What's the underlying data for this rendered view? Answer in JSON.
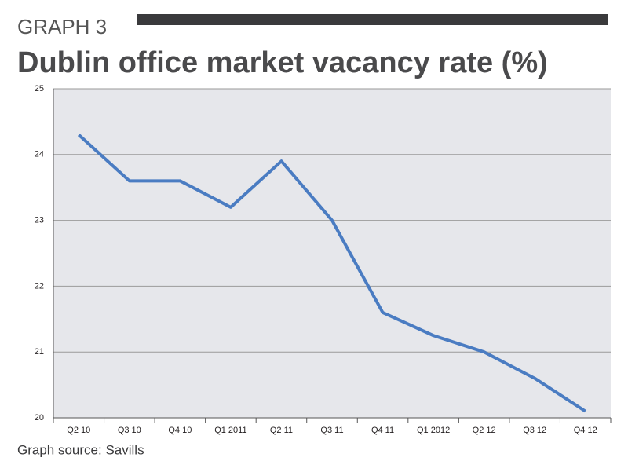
{
  "chart_data": {
    "type": "line",
    "label": "GRAPH 3",
    "title": "Dublin office market vacancy rate (%)",
    "source": "Graph source: Savills",
    "categories": [
      "Q2 10",
      "Q3 10",
      "Q4 10",
      "Q1 2011",
      "Q2 11",
      "Q3 11",
      "Q4 11",
      "Q1 2012",
      "Q2 12",
      "Q3 12",
      "Q4 12"
    ],
    "values": [
      24.3,
      23.6,
      23.6,
      23.2,
      23.9,
      23.0,
      21.6,
      21.25,
      21.0,
      20.6,
      20.1
    ],
    "color": "#4a7cc2",
    "ylim": [
      20,
      25
    ],
    "yticks": [
      20,
      21,
      22,
      23,
      24,
      25
    ],
    "grid": true
  }
}
